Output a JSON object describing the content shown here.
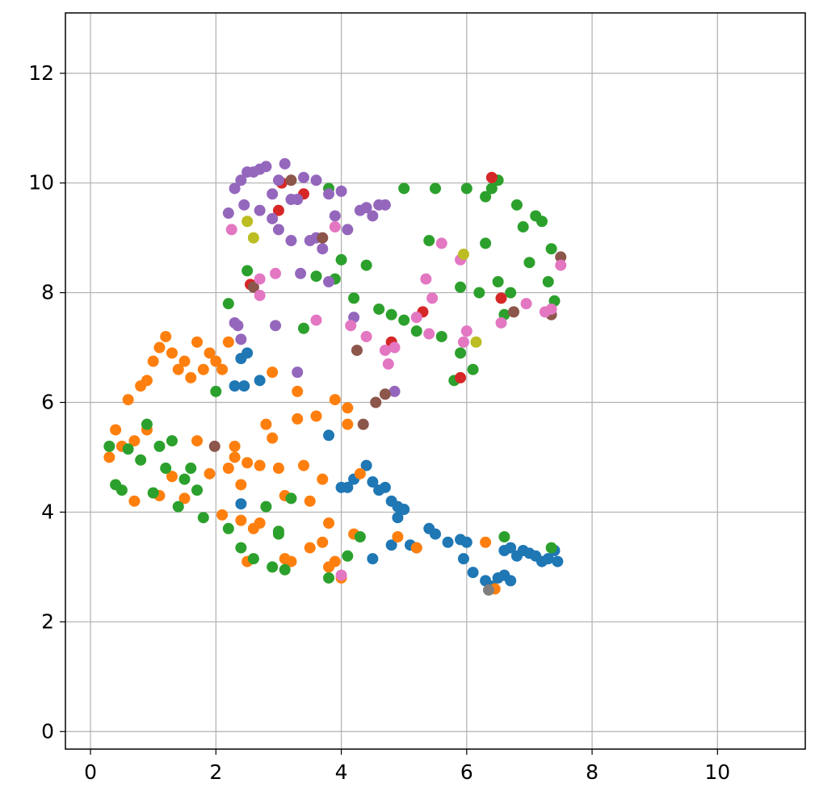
{
  "chart_data": {
    "type": "scatter",
    "xlim": [
      -0.4,
      11.4
    ],
    "ylim": [
      -0.32,
      13.1
    ],
    "xticks": [
      0,
      2,
      4,
      6,
      8,
      10
    ],
    "yticks": [
      0,
      2,
      4,
      6,
      8,
      10,
      12
    ],
    "grid": true,
    "series": [
      {
        "color": "#1f77b4",
        "x": [
          2.3,
          2.4,
          2.5,
          2.7,
          2.45,
          4.0,
          4.1,
          4.2,
          4.4,
          4.5,
          4.6,
          4.7,
          4.8,
          4.9,
          5.0,
          5.1,
          5.2,
          5.4,
          5.5,
          5.7,
          5.9,
          6.0,
          6.1,
          6.3,
          6.4,
          6.5,
          6.6,
          6.7,
          6.8,
          6.9,
          7.0,
          7.1,
          7.2,
          7.3,
          7.4,
          7.45,
          6.6,
          6.7,
          4.8,
          4.5,
          3.8,
          2.4,
          4.9,
          5.95
        ],
        "y": [
          6.3,
          6.8,
          6.9,
          6.4,
          6.3,
          4.45,
          4.45,
          4.6,
          4.85,
          3.15,
          4.4,
          4.45,
          4.2,
          4.1,
          4.05,
          3.4,
          3.35,
          3.7,
          3.6,
          3.45,
          3.5,
          3.45,
          2.9,
          2.75,
          2.65,
          2.8,
          3.3,
          3.35,
          3.2,
          3.3,
          3.25,
          3.2,
          3.1,
          3.15,
          3.3,
          3.1,
          2.85,
          2.75,
          3.4,
          4.55,
          5.4,
          4.15,
          3.9,
          3.15
        ]
      },
      {
        "color": "#ff7f0e",
        "x": [
          0.3,
          0.4,
          0.5,
          0.6,
          0.7,
          0.8,
          0.9,
          1.0,
          1.1,
          1.2,
          1.3,
          1.4,
          1.5,
          1.6,
          1.7,
          1.8,
          1.9,
          2.0,
          2.1,
          2.2,
          2.3,
          2.4,
          2.5,
          2.6,
          2.7,
          2.8,
          2.9,
          3.0,
          3.1,
          3.2,
          3.3,
          3.4,
          3.5,
          3.6,
          3.7,
          3.8,
          3.9,
          4.0,
          4.1,
          4.2,
          4.3,
          0.7,
          0.9,
          1.1,
          1.3,
          1.5,
          1.7,
          1.9,
          2.1,
          2.3,
          2.5,
          2.7,
          2.9,
          3.1,
          3.3,
          3.5,
          3.7,
          3.9,
          4.1,
          6.3,
          6.45,
          4.9,
          5.2,
          3.8,
          2.4,
          2.2
        ],
        "y": [
          5.0,
          5.5,
          5.2,
          6.05,
          4.2,
          6.3,
          6.4,
          6.75,
          7.0,
          7.2,
          6.9,
          6.6,
          6.75,
          6.45,
          7.1,
          6.6,
          6.9,
          6.75,
          6.6,
          7.1,
          5.0,
          4.5,
          3.1,
          3.7,
          4.85,
          5.6,
          6.55,
          4.8,
          4.3,
          3.1,
          6.2,
          4.85,
          3.35,
          5.75,
          4.6,
          3.0,
          6.05,
          2.8,
          5.6,
          3.6,
          4.7,
          5.3,
          5.5,
          4.3,
          4.65,
          4.25,
          5.3,
          4.7,
          3.95,
          5.2,
          4.9,
          3.8,
          5.35,
          3.15,
          5.7,
          4.2,
          3.45,
          3.1,
          5.9,
          3.45,
          2.6,
          3.55,
          3.35,
          3.8,
          3.85,
          4.8
        ]
      },
      {
        "color": "#2ca02c",
        "x": [
          0.3,
          0.4,
          0.5,
          0.6,
          0.8,
          0.9,
          1.0,
          1.1,
          1.2,
          1.3,
          1.4,
          1.5,
          1.6,
          1.7,
          1.8,
          2.0,
          2.2,
          2.4,
          2.6,
          2.8,
          3.0,
          3.1,
          3.2,
          2.2,
          2.5,
          3.4,
          3.6,
          3.8,
          4.0,
          4.2,
          4.4,
          4.6,
          4.8,
          5.0,
          5.2,
          5.4,
          5.6,
          5.8,
          5.9,
          6.0,
          6.2,
          6.3,
          6.4,
          6.5,
          6.6,
          6.7,
          6.8,
          6.9,
          7.0,
          7.1,
          7.2,
          7.3,
          7.35,
          7.4,
          6.6,
          7.35,
          2.9,
          3.0,
          3.8,
          4.1,
          3.9,
          4.3,
          5.0,
          5.5,
          5.9,
          6.1,
          6.3,
          6.5
        ],
        "y": [
          5.2,
          4.5,
          4.4,
          5.15,
          4.95,
          5.6,
          4.35,
          5.2,
          4.8,
          5.3,
          4.1,
          4.6,
          4.8,
          4.4,
          3.9,
          6.2,
          3.7,
          3.35,
          3.15,
          4.1,
          3.6,
          2.95,
          4.25,
          7.8,
          8.4,
          7.35,
          8.3,
          9.9,
          8.6,
          7.9,
          8.5,
          7.7,
          7.6,
          7.5,
          7.3,
          8.95,
          7.2,
          6.4,
          6.9,
          9.9,
          8.0,
          8.9,
          9.9,
          10.05,
          7.6,
          8.0,
          9.6,
          9.2,
          8.55,
          9.4,
          9.3,
          8.2,
          8.8,
          7.85,
          3.55,
          3.35,
          3.0,
          3.65,
          2.8,
          3.2,
          8.25,
          3.55,
          9.9,
          9.9,
          8.1,
          6.6,
          9.75,
          8.2
        ]
      },
      {
        "color": "#d62728",
        "x": [
          2.55,
          3.0,
          3.05,
          3.4,
          4.8,
          5.3,
          5.9,
          6.4,
          6.55
        ],
        "y": [
          8.15,
          9.5,
          10.0,
          9.8,
          7.1,
          7.65,
          6.45,
          10.1,
          7.9
        ]
      },
      {
        "color": "#9467bd",
        "x": [
          2.2,
          2.3,
          2.4,
          2.5,
          2.6,
          2.7,
          2.8,
          2.9,
          3.0,
          3.1,
          3.2,
          3.3,
          3.4,
          3.5,
          3.6,
          3.7,
          3.8,
          3.9,
          4.0,
          4.1,
          4.3,
          4.4,
          4.5,
          4.6,
          4.7,
          2.35,
          2.45,
          2.7,
          2.9,
          3.0,
          3.2,
          3.35,
          3.6,
          3.8,
          2.3,
          2.4,
          2.95,
          3.3,
          4.2,
          4.85
        ],
        "y": [
          9.45,
          9.9,
          10.05,
          10.2,
          10.2,
          10.25,
          10.3,
          9.8,
          10.05,
          10.35,
          9.7,
          9.7,
          10.1,
          8.95,
          10.05,
          8.8,
          9.8,
          9.4,
          9.85,
          9.15,
          9.5,
          9.55,
          9.4,
          9.6,
          9.6,
          7.4,
          9.6,
          9.5,
          9.35,
          9.15,
          8.95,
          8.35,
          9.0,
          8.2,
          7.45,
          7.15,
          7.4,
          6.55,
          7.55,
          6.2
        ]
      },
      {
        "color": "#8c564b",
        "x": [
          3.2,
          3.7,
          4.25,
          4.35,
          4.7,
          4.55,
          6.75,
          7.35,
          7.5,
          1.98,
          2.6
        ],
        "y": [
          10.05,
          9.0,
          6.95,
          5.6,
          6.15,
          6.0,
          7.65,
          7.6,
          8.65,
          5.2,
          8.1
        ]
      },
      {
        "color": "#e377c2",
        "x": [
          2.25,
          2.7,
          2.7,
          2.95,
          3.9,
          4.15,
          4.4,
          4.7,
          4.85,
          5.2,
          5.35,
          5.4,
          5.45,
          5.6,
          5.9,
          5.95,
          6.0,
          6.55,
          6.95,
          7.25,
          7.35,
          7.5,
          4.0,
          4.75,
          3.6
        ],
        "y": [
          9.15,
          8.25,
          7.95,
          8.35,
          9.2,
          7.4,
          7.2,
          6.95,
          7.0,
          7.55,
          8.25,
          7.25,
          7.9,
          8.9,
          8.6,
          7.1,
          7.3,
          7.45,
          7.8,
          7.65,
          7.7,
          8.5,
          2.85,
          6.7,
          7.5
        ]
      },
      {
        "color": "#7f7f7f",
        "x": [
          6.35
        ],
        "y": [
          2.58
        ]
      },
      {
        "color": "#bcbd22",
        "x": [
          2.5,
          2.6,
          5.95,
          6.15
        ],
        "y": [
          9.3,
          9.0,
          8.7,
          7.1
        ]
      }
    ]
  }
}
